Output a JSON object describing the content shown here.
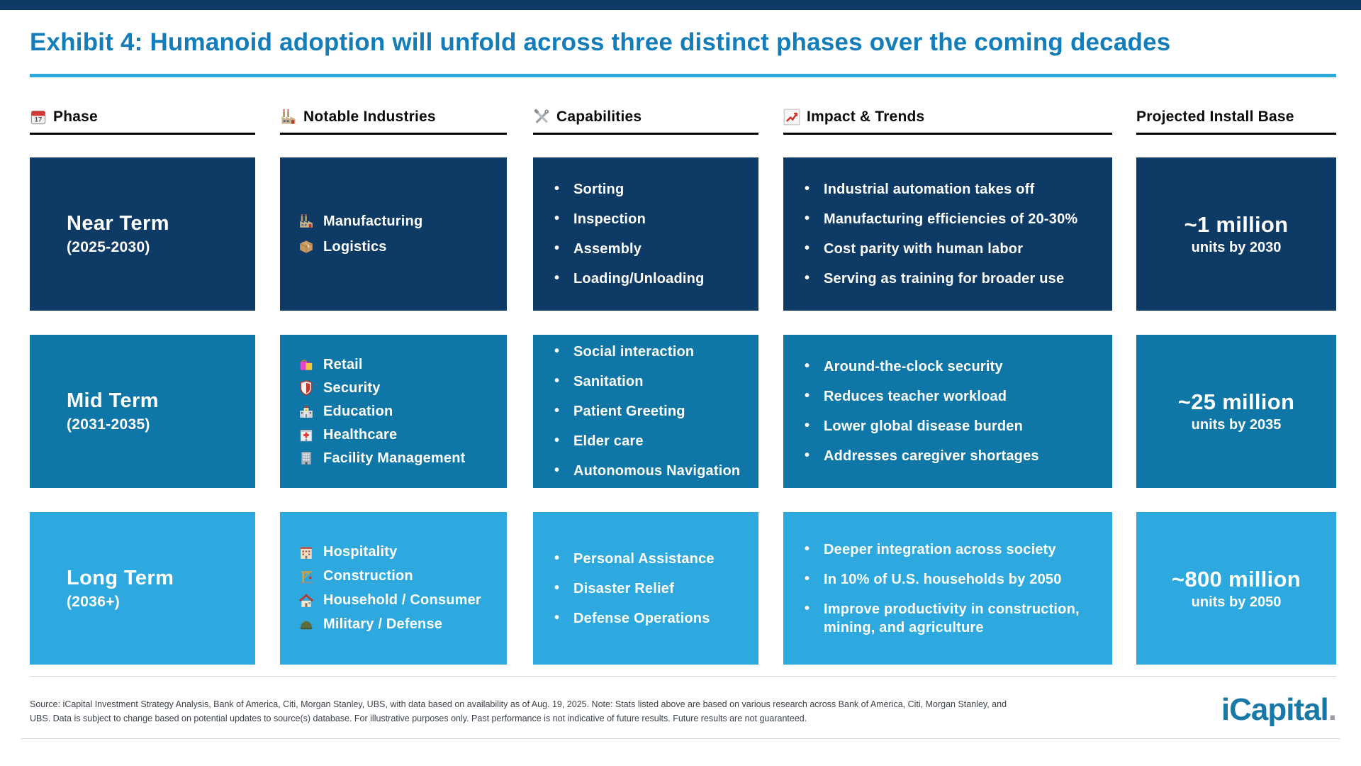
{
  "header": {
    "title": "Exhibit 4: Humanoid adoption will unfold across three distinct phases over the coming decades"
  },
  "columns": [
    {
      "label": "Phase",
      "icon": "calendar"
    },
    {
      "label": "Notable Industries",
      "icon": "factory"
    },
    {
      "label": "Capabilities",
      "icon": "tools"
    },
    {
      "label": "Impact & Trends",
      "icon": "chart-up"
    },
    {
      "label": "Projected Install Base",
      "icon": ""
    }
  ],
  "rows": [
    {
      "phase": {
        "name": "Near Term",
        "period": "(2025-2030)"
      },
      "color": "#0E3A66",
      "industries": [
        {
          "icon": "factory",
          "label": "Manufacturing"
        },
        {
          "icon": "package",
          "label": "Logistics"
        }
      ],
      "capabilities": [
        "Sorting",
        "Inspection",
        "Assembly",
        "Loading/Unloading"
      ],
      "impact": [
        "Industrial automation takes off",
        "Manufacturing efficiencies of 20-30%",
        "Cost parity with human labor",
        "Serving as training for broader use"
      ],
      "install": {
        "value": "~1 million",
        "unit": "units by 2030"
      }
    },
    {
      "phase": {
        "name": "Mid Term",
        "period": "(2031-2035)"
      },
      "color": "#0F76A8",
      "industries": [
        {
          "icon": "shopping-bags",
          "label": "Retail"
        },
        {
          "icon": "shield",
          "label": "Security"
        },
        {
          "icon": "school",
          "label": "Education"
        },
        {
          "icon": "hospital",
          "label": "Healthcare"
        },
        {
          "icon": "office-building",
          "label": "Facility Management"
        }
      ],
      "capabilities": [
        "Social interaction",
        "Sanitation",
        "Patient Greeting",
        "Elder care",
        "Autonomous Navigation"
      ],
      "impact": [
        "Around-the-clock security",
        "Reduces teacher workload",
        "Lower global disease burden",
        "Addresses caregiver shortages"
      ],
      "install": {
        "value": "~25 million",
        "unit": "units by 2035"
      }
    },
    {
      "phase": {
        "name": "Long Term",
        "period": "(2036+)"
      },
      "color": "#2EA9E0",
      "industries": [
        {
          "icon": "hotel",
          "label": "Hospitality"
        },
        {
          "icon": "crane",
          "label": "Construction"
        },
        {
          "icon": "house",
          "label": "Household / Consumer"
        },
        {
          "icon": "helmet",
          "label": "Military / Defense"
        }
      ],
      "capabilities": [
        "Personal Assistance",
        "Disaster Relief",
        "Defense Operations"
      ],
      "impact": [
        "Deeper integration across society",
        "In 10% of U.S. households by 2050",
        "Improve productivity in construction, mining, and agriculture"
      ],
      "install": {
        "value": "~800 million",
        "unit": "units by 2050"
      }
    }
  ],
  "footer": {
    "source_text": "Source: iCapital Investment Strategy Analysis, Bank of America, Citi, Morgan Stanley, UBS, with data based on availability as of Aug. 19, 2025. Note: Stats listed above are based on various research across Bank of America, Citi, Morgan Stanley, and UBS. Data is subject to change based on potential updates to source(s) database. For illustrative purposes only. Past performance is not indicative of future results. Future results are not guaranteed.",
    "logo_text": "iCapital",
    "logo_dot": "."
  },
  "theme": {
    "title_color": "#137DBA",
    "accent_color": "#2FA9DC",
    "top_bar_color": "#0E3A66",
    "logo_color": "#1878A8",
    "row_colors": [
      "#0E3A66",
      "#0F76A8",
      "#2EA9E0"
    ]
  },
  "chart_data": {
    "type": "table",
    "title": "Exhibit 4: Humanoid adoption will unfold across three distinct phases over the coming decades",
    "columns": [
      "Phase",
      "Notable Industries",
      "Capabilities",
      "Impact & Trends",
      "Projected Install Base"
    ],
    "rows": [
      [
        "Near Term (2025-2030)",
        "Manufacturing; Logistics",
        "Sorting; Inspection; Assembly; Loading/Unloading",
        "Industrial automation takes off; Manufacturing efficiencies of 20-30%; Cost parity with human labor; Serving as training for broader use",
        "~1 million units by 2030"
      ],
      [
        "Mid Term (2031-2035)",
        "Retail; Security; Education; Healthcare; Facility Management",
        "Social interaction; Sanitation; Patient Greeting; Elder care; Autonomous Navigation",
        "Around-the-clock security; Reduces teacher workload; Lower global disease burden; Addresses caregiver shortages",
        "~25 million units by 2035"
      ],
      [
        "Long Term (2036+)",
        "Hospitality; Construction; Household / Consumer; Military / Defense",
        "Personal Assistance; Disaster Relief; Defense Operations",
        "Deeper integration across society; In 10% of U.S. households by 2050; Improve productivity in construction, mining, and agriculture",
        "~800 million units by 2050"
      ]
    ]
  }
}
